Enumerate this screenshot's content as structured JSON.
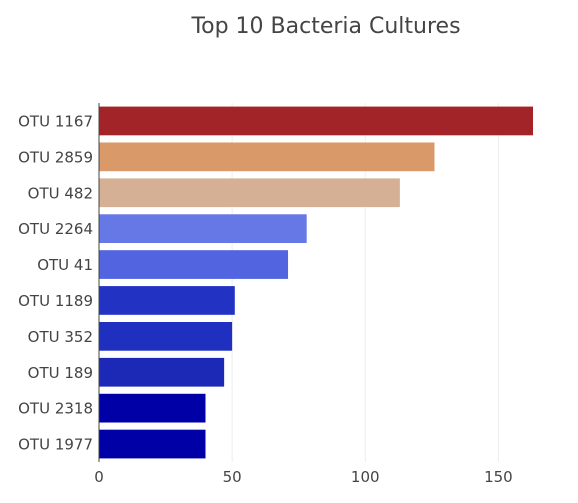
{
  "chart_data": {
    "type": "bar",
    "orientation": "horizontal",
    "title": "Top 10 Bacteria Cultures",
    "xlabel": "",
    "ylabel": "",
    "xlim": [
      0,
      163
    ],
    "x_ticks": [
      0,
      50,
      100,
      150
    ],
    "grid": true,
    "legend": "none",
    "categories": [
      "OTU 1167",
      "OTU 2859",
      "OTU 482",
      "OTU 2264",
      "OTU 41",
      "OTU 1189",
      "OTU 352",
      "OTU 189",
      "OTU 2318",
      "OTU 1977"
    ],
    "values": [
      163,
      126,
      113,
      78,
      71,
      51,
      50,
      47,
      40,
      40
    ],
    "colors": [
      "#a32428",
      "#d99968",
      "#d5b094",
      "#6677e6",
      "#5264e0",
      "#2233c4",
      "#1f2fc0",
      "#1c29b6",
      "#0000a7",
      "#0000a7"
    ]
  }
}
